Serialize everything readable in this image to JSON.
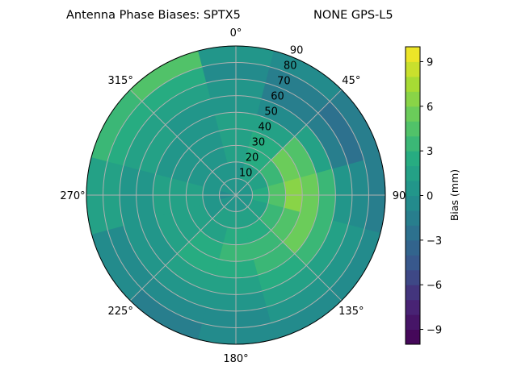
{
  "chart_data": {
    "type": "heatmap",
    "subtype": "polar-contour",
    "title_left": "Antenna Phase Biases: SPTX5",
    "title_right": "NONE GPS-L5",
    "angular_tick_labels": [
      "0°",
      "45°",
      "90",
      "135°",
      "180°",
      "225°",
      "270°",
      "315°"
    ],
    "angular_ticks_deg": [
      0,
      45,
      90,
      135,
      180,
      225,
      270,
      315
    ],
    "angular_direction": "clockwise",
    "zero_location": "top",
    "radial_tick_labels": [
      "10",
      "20",
      "30",
      "40",
      "50",
      "60",
      "70",
      "80",
      "90"
    ],
    "radial_ticks": [
      10,
      20,
      30,
      40,
      50,
      60,
      70,
      80,
      90
    ],
    "rlim": [
      0,
      90
    ],
    "grid": true,
    "colormap": "viridis",
    "colorbar": {
      "label": "Bias (mm)",
      "tick_labels": [
        "9",
        "6",
        "3",
        "0",
        "−3",
        "−6",
        "−9"
      ],
      "ticks": [
        9,
        6,
        3,
        0,
        -3,
        -6,
        -9
      ],
      "range": [
        -10,
        10
      ],
      "level_step": 1
    },
    "azimuth_centers_deg": [
      0,
      30,
      60,
      90,
      120,
      150,
      180,
      210,
      240,
      270,
      300,
      330
    ],
    "zenith_band_centers_deg": [
      5,
      15,
      25,
      35,
      45,
      55,
      65,
      75,
      85
    ],
    "values_mm": [
      [
        0,
        0,
        1,
        1,
        1,
        0,
        0,
        -1,
        0
      ],
      [
        0,
        1,
        2,
        2,
        1,
        -1,
        -2,
        -2,
        -1
      ],
      [
        0,
        1,
        3,
        5,
        4,
        1,
        -2,
        -3,
        -2
      ],
      [
        0,
        2,
        4,
        6,
        5,
        3,
        0,
        -1,
        -2
      ],
      [
        0,
        1,
        3,
        4,
        5,
        3,
        1,
        0,
        -1
      ],
      [
        0,
        1,
        2,
        3,
        3,
        2,
        1,
        0,
        -1
      ],
      [
        0,
        1,
        2,
        3,
        2,
        1,
        0,
        -1,
        -1
      ],
      [
        0,
        1,
        1,
        2,
        2,
        1,
        0,
        -1,
        -2
      ],
      [
        0,
        0,
        1,
        1,
        1,
        0,
        0,
        -1,
        -1
      ],
      [
        -1,
        0,
        1,
        1,
        1,
        0,
        0,
        1,
        1
      ],
      [
        0,
        0,
        0,
        0,
        0,
        1,
        1,
        2,
        3
      ],
      [
        0,
        0,
        0,
        0,
        0,
        0,
        1,
        2,
        4
      ]
    ]
  }
}
